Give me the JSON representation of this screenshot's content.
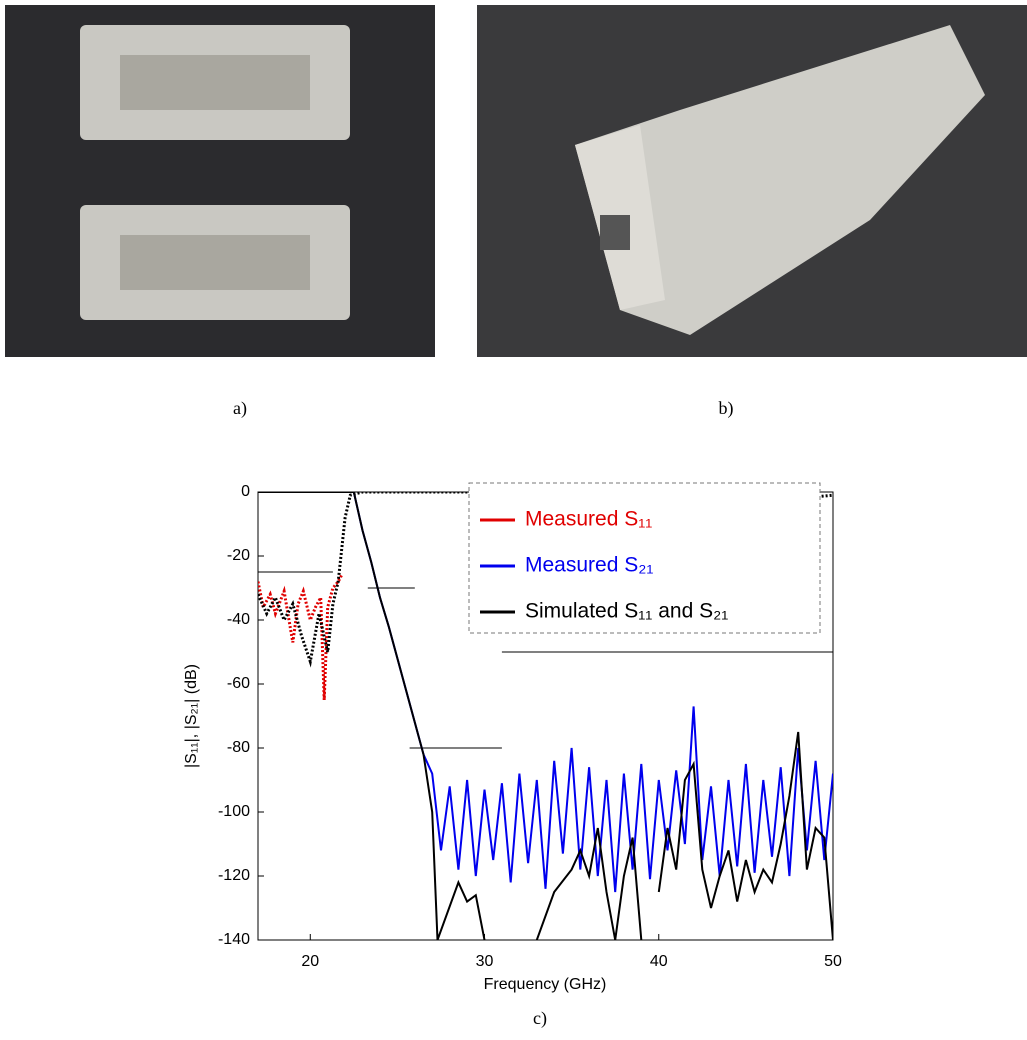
{
  "captions": {
    "a": "a)",
    "b": "b)",
    "c": "c)"
  },
  "chart_data": {
    "type": "line",
    "xlabel": "Frequency (GHz)",
    "ylabel": "|S₁₁|, |S₂₁| (dB)",
    "xlim": [
      17,
      50
    ],
    "ylim": [
      -140,
      0
    ],
    "xticks": [
      20,
      30,
      40,
      50
    ],
    "yticks": [
      -140,
      -120,
      -100,
      -80,
      -60,
      -40,
      -20,
      0
    ],
    "series": [
      {
        "name": "Measured S₁₁",
        "color": "#e00000",
        "style": "dotted",
        "x": [
          17,
          17.3,
          17.7,
          18,
          18.5,
          19,
          19.3,
          19.6,
          20,
          20.3,
          20.6,
          20.8,
          21,
          21.3,
          21.6,
          21.8
        ],
        "values": [
          -28,
          -36,
          -32,
          -38,
          -31,
          -47,
          -35,
          -31,
          -40,
          -36,
          -33,
          -65,
          -36,
          -30,
          -28,
          -26
        ]
      },
      {
        "name": "Measured S₂₁",
        "color": "#0000ee",
        "style": "solid",
        "x": [
          17,
          18,
          19,
          20,
          21,
          22,
          22.5,
          23,
          23.5,
          24,
          24.5,
          25,
          25.5,
          26,
          26.5,
          27,
          27.5,
          28,
          28.5,
          29,
          29.5,
          30,
          30.5,
          31,
          31.5,
          32,
          32.5,
          33,
          33.5,
          34,
          34.5,
          35,
          35.5,
          36,
          36.5,
          37,
          37.5,
          38,
          38.5,
          39,
          39.5,
          40,
          40.5,
          41,
          41.5,
          42,
          42.5,
          43,
          43.5,
          44,
          44.5,
          45,
          45.5,
          46,
          46.5,
          47,
          47.5,
          48,
          48.5,
          49,
          49.5,
          50
        ],
        "values": [
          0,
          0,
          0,
          0,
          0,
          0,
          0,
          -12,
          -22,
          -33,
          -42,
          -52,
          -62,
          -72,
          -82,
          -88,
          -112,
          -92,
          -118,
          -90,
          -120,
          -93,
          -115,
          -91,
          -122,
          -88,
          -116,
          -90,
          -124,
          -84,
          -113,
          -80,
          -118,
          -86,
          -120,
          -90,
          -125,
          -88,
          -118,
          -85,
          -121,
          -90,
          -112,
          -87,
          -110,
          -67,
          -115,
          -92,
          -120,
          -90,
          -117,
          -85,
          -119,
          -90,
          -114,
          -86,
          -120,
          -80,
          -112,
          -84,
          -115,
          -88
        ]
      },
      {
        "name": "Simulated S₁₁ and S₂₁",
        "color": "#000000",
        "style": "solid",
        "x": [
          17,
          18,
          19,
          20,
          21,
          22,
          22.5,
          23,
          23.5,
          24,
          24.5,
          25,
          25.5,
          26,
          26.5,
          27,
          27.3,
          28.5,
          29,
          29.5,
          30,
          31,
          33,
          34,
          35,
          35.5,
          36,
          36.5,
          37,
          37.5,
          38,
          38.5,
          39,
          39.5,
          40,
          40.5,
          41,
          41.5,
          42,
          42.5,
          43,
          43.5,
          44,
          44.5,
          45,
          45.5,
          46,
          46.5,
          47,
          47.5,
          48,
          48.5,
          49,
          49.5,
          50
        ],
        "values": [
          0,
          0,
          0,
          0,
          0,
          0,
          0,
          -12,
          -22,
          -33,
          -42,
          -52,
          -62,
          -72,
          -82,
          -100,
          -140,
          -122,
          -128,
          -126,
          -140,
          null,
          -140,
          -125,
          -118,
          -112,
          -120,
          -105,
          -125,
          -140,
          -120,
          -108,
          -140,
          null,
          -125,
          -105,
          -118,
          -90,
          -85,
          -118,
          -130,
          -120,
          -112,
          -128,
          -115,
          -125,
          -118,
          -122,
          -110,
          -95,
          -75,
          -118,
          -105,
          -108,
          -140
        ]
      },
      {
        "color": "#000000",
        "style": "dotted",
        "x": [
          17,
          17.5,
          18,
          18.5,
          19,
          19.5,
          20,
          20.5,
          21,
          21.3,
          21.6,
          22,
          22.3,
          23,
          30,
          40,
          45,
          46,
          48,
          50
        ],
        "values": [
          -32,
          -38,
          -33,
          -40,
          -35,
          -45,
          -53,
          -38,
          -50,
          -35,
          -28,
          -8,
          -1,
          0,
          0,
          0,
          -3,
          0,
          -2,
          -1
        ]
      }
    ],
    "spec_lines": [
      {
        "x": [
          17,
          21.3
        ],
        "values": [
          -25,
          -25
        ]
      },
      {
        "x": [
          23.3,
          26
        ],
        "values": [
          -30,
          -30
        ]
      },
      {
        "x": [
          25.7,
          31
        ],
        "values": [
          -80,
          -80
        ]
      },
      {
        "x": [
          31,
          50
        ],
        "values": [
          -50,
          -50
        ]
      }
    ]
  }
}
